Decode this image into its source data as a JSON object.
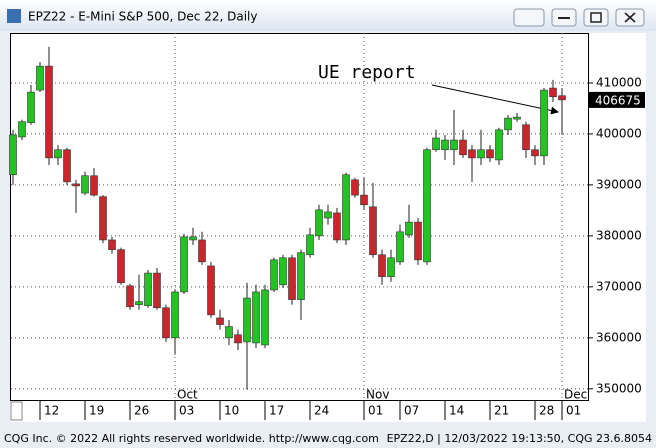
{
  "chart_data": {
    "type": "candlestick",
    "title": "EPZ22 - E-Mini S&P 500, Dec 22, Daily",
    "annotation": "UE report",
    "categories": [
      null,
      null,
      null,
      "12",
      null,
      null,
      null,
      null,
      "19",
      null,
      null,
      null,
      null,
      "26",
      null,
      null,
      null,
      null,
      "03",
      null,
      null,
      null,
      null,
      "10",
      null,
      null,
      null,
      null,
      "17",
      null,
      null,
      null,
      null,
      "24",
      null,
      null,
      null,
      null,
      null,
      "01",
      null,
      null,
      null,
      "07",
      null,
      null,
      null,
      null,
      "14",
      null,
      null,
      null,
      null,
      "21",
      null,
      null,
      null,
      null,
      "28",
      null,
      null,
      "01"
    ],
    "months": [
      null,
      null,
      null,
      null,
      null,
      null,
      null,
      null,
      null,
      null,
      null,
      null,
      null,
      null,
      null,
      null,
      null,
      null,
      "Oct",
      null,
      null,
      null,
      null,
      null,
      null,
      null,
      null,
      null,
      null,
      null,
      null,
      null,
      null,
      null,
      null,
      null,
      null,
      null,
      null,
      "Nov",
      null,
      null,
      null,
      null,
      null,
      null,
      null,
      null,
      null,
      null,
      null,
      null,
      null,
      null,
      null,
      null,
      null,
      null,
      null,
      null,
      null,
      "Dec"
    ],
    "open": [
      392000,
      399400,
      402200,
      408600,
      413300,
      395300,
      396900,
      390200,
      388400,
      391800,
      387700,
      379200,
      377300,
      370200,
      366500,
      366300,
      372700,
      365900,
      360000,
      369000,
      379200,
      379200,
      374100,
      363900,
      360000,
      360600,
      359200,
      359000,
      358600,
      369400,
      370400,
      375700,
      367500,
      376300,
      380000,
      383500,
      384500,
      379200,
      391000,
      388000,
      385700,
      376300,
      372000,
      374900,
      380200,
      382700,
      374900,
      396900,
      396900,
      396900,
      398800,
      396900,
      395300,
      396900,
      394900,
      400800,
      402900,
      401800,
      396900,
      395700,
      409000,
      407500
    ],
    "high": [
      400800,
      402800,
      409600,
      414100,
      417100,
      397800,
      397300,
      391000,
      392600,
      393300,
      388000,
      379800,
      377700,
      370600,
      372400,
      373300,
      373700,
      366500,
      369400,
      380400,
      381600,
      380800,
      374900,
      365500,
      363500,
      361600,
      370800,
      370400,
      370400,
      375700,
      376300,
      376300,
      377300,
      381600,
      386100,
      386100,
      385500,
      392400,
      391400,
      391400,
      390400,
      377300,
      377300,
      382200,
      386100,
      383500,
      397300,
      400800,
      399800,
      404700,
      400800,
      397800,
      400800,
      397800,
      401200,
      403700,
      404100,
      402400,
      397800,
      409000,
      410600,
      409000
    ],
    "low": [
      390000,
      398800,
      401800,
      408200,
      393900,
      393900,
      390000,
      384500,
      388000,
      387700,
      378600,
      376500,
      370400,
      365500,
      365500,
      365900,
      365500,
      359200,
      356700,
      368600,
      378200,
      374300,
      363900,
      361600,
      358600,
      357600,
      349800,
      358000,
      358000,
      369000,
      369800,
      366500,
      363500,
      375700,
      379200,
      382200,
      378600,
      378200,
      387500,
      385100,
      375700,
      370400,
      371000,
      374300,
      379600,
      374300,
      374300,
      396500,
      394900,
      393900,
      395300,
      390600,
      393900,
      394500,
      393900,
      399800,
      402400,
      395300,
      393900,
      393900,
      406300,
      399800
    ],
    "close": [
      399800,
      402400,
      408200,
      413300,
      395300,
      396900,
      390600,
      389800,
      391800,
      388000,
      379200,
      377300,
      370800,
      366100,
      367100,
      372700,
      365900,
      360000,
      369000,
      379800,
      379800,
      374900,
      364500,
      362600,
      362200,
      359000,
      367800,
      369000,
      369400,
      375300,
      375700,
      367500,
      376700,
      380200,
      385100,
      384700,
      379200,
      392000,
      388000,
      386100,
      376300,
      372000,
      375700,
      380800,
      382700,
      375300,
      396900,
      399200,
      398800,
      398800,
      395900,
      395300,
      396900,
      395300,
      400800,
      403100,
      403300,
      396900,
      395700,
      408600,
      407300,
      406675
    ],
    "up_color": "#22c322",
    "down_color": "#c8282d",
    "ylim": [
      347800,
      419800
    ],
    "yticks": [
      350000,
      360000,
      370000,
      380000,
      390000,
      400000,
      410000
    ],
    "grid": true
  },
  "footer": {
    "left": "CQG Inc. © 2022 All rights reserved worldwide. http://www.cqg.com",
    "right": "EPZ22,D | 12/03/2022 19:13:50, CQG 23.6.8054"
  }
}
